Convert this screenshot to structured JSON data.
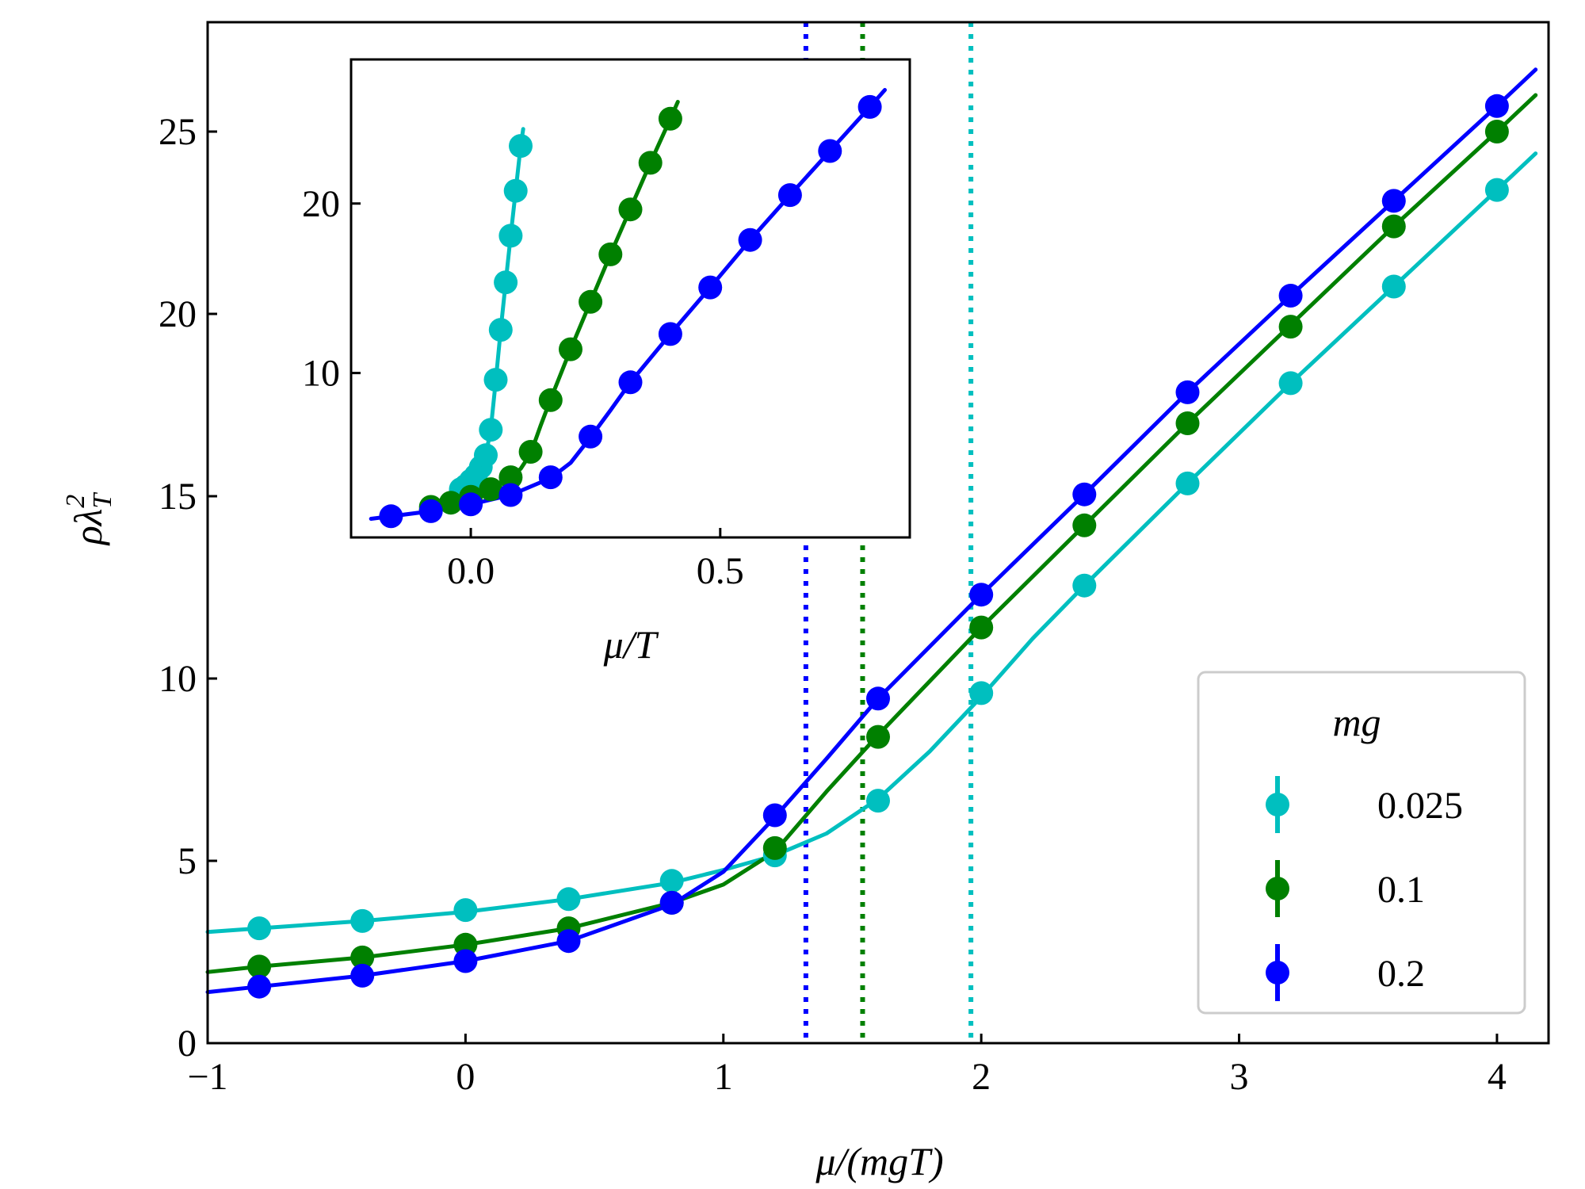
{
  "chart_data": [
    {
      "type": "line",
      "role": "main",
      "xlabel": "μ/(mgT)",
      "ylabel": "ρλ_T^2",
      "xlim": [
        -1,
        4.2
      ],
      "ylim": [
        0,
        28
      ],
      "xticks": [
        -1,
        0,
        1,
        2,
        3,
        4
      ],
      "xtick_labels": [
        "−1",
        "0",
        "1",
        "2",
        "3",
        "4"
      ],
      "yticks": [
        0,
        5,
        10,
        15,
        20,
        25
      ],
      "ytick_labels": [
        "0",
        "5",
        "10",
        "15",
        "20",
        "25"
      ],
      "grid": false,
      "vlines": [
        {
          "x": 1.32,
          "series": "0.2"
        },
        {
          "x": 1.54,
          "series": "0.1"
        },
        {
          "x": 1.96,
          "series": "0.025"
        }
      ],
      "series": [
        {
          "name": "0.025",
          "color": "#00BFBF",
          "points": [
            [
              -0.8,
              3.15
            ],
            [
              -0.4,
              3.35
            ],
            [
              0.0,
              3.65
            ],
            [
              0.4,
              3.95
            ],
            [
              0.8,
              4.45
            ],
            [
              1.2,
              5.15
            ],
            [
              1.6,
              6.65
            ],
            [
              2.0,
              9.6
            ],
            [
              2.4,
              12.55
            ],
            [
              2.8,
              15.35
            ],
            [
              3.2,
              18.1
            ],
            [
              3.6,
              20.75
            ],
            [
              4.0,
              23.4
            ]
          ],
          "curve": [
            [
              -1.0,
              3.05
            ],
            [
              -0.8,
              3.15
            ],
            [
              -0.4,
              3.35
            ],
            [
              0.0,
              3.6
            ],
            [
              0.4,
              3.95
            ],
            [
              0.8,
              4.4
            ],
            [
              1.0,
              4.75
            ],
            [
              1.2,
              5.15
            ],
            [
              1.4,
              5.75
            ],
            [
              1.6,
              6.7
            ],
            [
              1.8,
              8.0
            ],
            [
              2.0,
              9.5
            ],
            [
              2.2,
              11.1
            ],
            [
              2.4,
              12.55
            ],
            [
              2.8,
              15.35
            ],
            [
              3.2,
              18.1
            ],
            [
              3.6,
              20.75
            ],
            [
              4.0,
              23.4
            ],
            [
              4.15,
              24.4
            ]
          ]
        },
        {
          "name": "0.1",
          "color": "#008000",
          "points": [
            [
              -0.8,
              2.1
            ],
            [
              -0.4,
              2.35
            ],
            [
              0.0,
              2.7
            ],
            [
              0.4,
              3.15
            ],
            [
              0.8,
              3.85
            ],
            [
              1.2,
              5.35
            ],
            [
              1.6,
              8.4
            ],
            [
              2.0,
              11.4
            ],
            [
              2.4,
              14.2
            ],
            [
              2.8,
              17.0
            ],
            [
              3.2,
              19.65
            ],
            [
              3.6,
              22.4
            ],
            [
              4.0,
              25.0
            ]
          ],
          "curve": [
            [
              -1.0,
              1.95
            ],
            [
              -0.8,
              2.1
            ],
            [
              -0.4,
              2.35
            ],
            [
              0.0,
              2.7
            ],
            [
              0.4,
              3.15
            ],
            [
              0.8,
              3.85
            ],
            [
              1.0,
              4.35
            ],
            [
              1.2,
              5.25
            ],
            [
              1.4,
              6.9
            ],
            [
              1.6,
              8.45
            ],
            [
              2.0,
              11.4
            ],
            [
              2.4,
              14.2
            ],
            [
              2.8,
              17.0
            ],
            [
              3.2,
              19.7
            ],
            [
              3.6,
              22.4
            ],
            [
              4.0,
              25.0
            ],
            [
              4.15,
              26.0
            ]
          ]
        },
        {
          "name": "0.2",
          "color": "#0000FF",
          "points": [
            [
              -0.8,
              1.55
            ],
            [
              -0.4,
              1.85
            ],
            [
              0.0,
              2.25
            ],
            [
              0.4,
              2.8
            ],
            [
              0.8,
              3.85
            ],
            [
              1.2,
              6.25
            ],
            [
              1.6,
              9.45
            ],
            [
              2.0,
              12.3
            ],
            [
              2.4,
              15.05
            ],
            [
              2.8,
              17.85
            ],
            [
              3.2,
              20.5
            ],
            [
              3.6,
              23.1
            ],
            [
              4.0,
              25.7
            ]
          ],
          "curve": [
            [
              -1.0,
              1.4
            ],
            [
              -0.8,
              1.55
            ],
            [
              -0.4,
              1.85
            ],
            [
              0.0,
              2.25
            ],
            [
              0.4,
              2.8
            ],
            [
              0.8,
              3.8
            ],
            [
              1.0,
              4.7
            ],
            [
              1.2,
              6.2
            ],
            [
              1.4,
              7.8
            ],
            [
              1.6,
              9.45
            ],
            [
              2.0,
              12.3
            ],
            [
              2.4,
              15.05
            ],
            [
              2.8,
              17.85
            ],
            [
              3.2,
              20.5
            ],
            [
              3.6,
              23.1
            ],
            [
              4.0,
              25.7
            ],
            [
              4.15,
              26.7
            ]
          ]
        }
      ]
    },
    {
      "type": "line",
      "role": "inset",
      "xlabel": "μ/T",
      "ylabel": "",
      "xlim": [
        -0.24,
        0.88
      ],
      "ylim": [
        0.3,
        28.5
      ],
      "xticks": [
        0.0,
        0.5
      ],
      "xtick_labels": [
        "0.0",
        "0.5"
      ],
      "yticks": [
        10,
        20
      ],
      "ytick_labels": [
        "10",
        "20"
      ],
      "grid": false,
      "series": [
        {
          "name": "0.025",
          "color": "#00BFBF",
          "points": [
            [
              -0.02,
              3.15
            ],
            [
              -0.01,
              3.35
            ],
            [
              0.0,
              3.65
            ],
            [
              0.01,
              3.95
            ],
            [
              0.02,
              4.45
            ],
            [
              0.03,
              5.15
            ],
            [
              0.04,
              6.65
            ],
            [
              0.05,
              9.6
            ],
            [
              0.06,
              12.55
            ],
            [
              0.07,
              15.35
            ],
            [
              0.08,
              18.1
            ],
            [
              0.09,
              20.75
            ],
            [
              0.1,
              23.4
            ]
          ],
          "curve": [
            [
              -0.025,
              3.05
            ],
            [
              -0.02,
              3.15
            ],
            [
              -0.01,
              3.35
            ],
            [
              0.0,
              3.6
            ],
            [
              0.01,
              3.95
            ],
            [
              0.02,
              4.4
            ],
            [
              0.03,
              5.15
            ],
            [
              0.04,
              6.7
            ],
            [
              0.05,
              9.5
            ],
            [
              0.06,
              12.55
            ],
            [
              0.07,
              15.35
            ],
            [
              0.08,
              18.1
            ],
            [
              0.09,
              20.75
            ],
            [
              0.1,
              23.4
            ],
            [
              0.105,
              24.4
            ]
          ]
        },
        {
          "name": "0.1",
          "color": "#008000",
          "points": [
            [
              -0.08,
              2.1
            ],
            [
              -0.04,
              2.35
            ],
            [
              0.0,
              2.7
            ],
            [
              0.04,
              3.15
            ],
            [
              0.08,
              3.85
            ],
            [
              0.12,
              5.35
            ],
            [
              0.16,
              8.4
            ],
            [
              0.2,
              11.4
            ],
            [
              0.24,
              14.2
            ],
            [
              0.28,
              17.0
            ],
            [
              0.32,
              19.65
            ],
            [
              0.36,
              22.4
            ],
            [
              0.4,
              25.0
            ]
          ],
          "curve": [
            [
              -0.1,
              1.95
            ],
            [
              -0.08,
              2.1
            ],
            [
              -0.04,
              2.35
            ],
            [
              0.0,
              2.7
            ],
            [
              0.04,
              3.15
            ],
            [
              0.08,
              3.85
            ],
            [
              0.1,
              4.35
            ],
            [
              0.12,
              5.25
            ],
            [
              0.14,
              6.9
            ],
            [
              0.16,
              8.45
            ],
            [
              0.2,
              11.4
            ],
            [
              0.24,
              14.2
            ],
            [
              0.28,
              17.0
            ],
            [
              0.32,
              19.7
            ],
            [
              0.36,
              22.4
            ],
            [
              0.4,
              25.0
            ],
            [
              0.415,
              26.0
            ]
          ]
        },
        {
          "name": "0.2",
          "color": "#0000FF",
          "points": [
            [
              -0.16,
              1.55
            ],
            [
              -0.08,
              1.85
            ],
            [
              0.0,
              2.25
            ],
            [
              0.08,
              2.8
            ],
            [
              0.16,
              3.85
            ],
            [
              0.24,
              6.25
            ],
            [
              0.32,
              9.45
            ],
            [
              0.4,
              12.3
            ],
            [
              0.48,
              15.05
            ],
            [
              0.56,
              17.85
            ],
            [
              0.64,
              20.5
            ],
            [
              0.72,
              23.1
            ],
            [
              0.8,
              25.7
            ]
          ],
          "curve": [
            [
              -0.2,
              1.4
            ],
            [
              -0.16,
              1.55
            ],
            [
              -0.08,
              1.85
            ],
            [
              0.0,
              2.25
            ],
            [
              0.08,
              2.8
            ],
            [
              0.16,
              3.8
            ],
            [
              0.2,
              4.7
            ],
            [
              0.24,
              6.2
            ],
            [
              0.28,
              7.8
            ],
            [
              0.32,
              9.45
            ],
            [
              0.4,
              12.3
            ],
            [
              0.48,
              15.05
            ],
            [
              0.56,
              17.85
            ],
            [
              0.64,
              20.5
            ],
            [
              0.72,
              23.1
            ],
            [
              0.8,
              25.7
            ],
            [
              0.83,
              26.7
            ]
          ]
        }
      ]
    }
  ],
  "legend": {
    "title": "mg",
    "placement": "lower-right",
    "entries": [
      "0.025",
      "0.1",
      "0.2"
    ]
  }
}
